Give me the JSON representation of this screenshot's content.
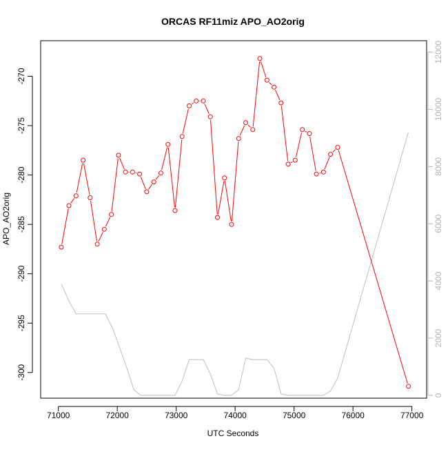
{
  "chart_data": {
    "type": "line",
    "title": "ORCAS RF11miz APO_AO2orig",
    "xlabel": "UTC Seconds",
    "ylabel": "APO_AO2orig",
    "xlim": [
      70700,
      77250
    ],
    "ylim": [
      -302.6,
      -266.4
    ],
    "y2lim": [
      -100,
      12400
    ],
    "x_ticks": [
      71000,
      72000,
      73000,
      74000,
      75000,
      76000,
      77000
    ],
    "y_ticks": [
      -300,
      -295,
      -290,
      -285,
      -280,
      -275,
      -270
    ],
    "y2_ticks": [
      0,
      2000,
      4000,
      6000,
      8000,
      10000,
      12000
    ],
    "grid": false,
    "colors": {
      "primary": "#ff0000",
      "secondary": "#c8c8c8",
      "axis": "#000000",
      "secondary_axis": "#b4b4b4"
    },
    "series": [
      {
        "axis": "left",
        "style": "line+markers",
        "points": [
          [
            71050,
            -287.3
          ],
          [
            71180,
            -283.1
          ],
          [
            71300,
            -282.1
          ],
          [
            71420,
            -278.5
          ],
          [
            71540,
            -282.3
          ],
          [
            71660,
            -287.0
          ],
          [
            71780,
            -285.5
          ],
          [
            71900,
            -284.0
          ],
          [
            72020,
            -278.0
          ],
          [
            72140,
            -279.7
          ],
          [
            72260,
            -279.7
          ],
          [
            72380,
            -279.9
          ],
          [
            72500,
            -281.7
          ],
          [
            72620,
            -280.7
          ],
          [
            72740,
            -279.8
          ],
          [
            72860,
            -276.9
          ],
          [
            72980,
            -283.6
          ],
          [
            73100,
            -276.1
          ],
          [
            73220,
            -273.0
          ],
          [
            73340,
            -272.5
          ],
          [
            73460,
            -272.5
          ],
          [
            73580,
            -274.1
          ],
          [
            73700,
            -284.3
          ],
          [
            73820,
            -280.3
          ],
          [
            73940,
            -285.0
          ],
          [
            74060,
            -276.3
          ],
          [
            74180,
            -274.7
          ],
          [
            74300,
            -275.4
          ],
          [
            74420,
            -268.2
          ],
          [
            74540,
            -270.4
          ],
          [
            74660,
            -271.1
          ],
          [
            74780,
            -272.7
          ],
          [
            74900,
            -278.9
          ],
          [
            75020,
            -278.5
          ],
          [
            75140,
            -275.4
          ],
          [
            75260,
            -275.8
          ],
          [
            75380,
            -279.9
          ],
          [
            75500,
            -279.7
          ],
          [
            75620,
            -277.9
          ],
          [
            75740,
            -277.2
          ],
          [
            76940,
            -301.4
          ]
        ]
      },
      {
        "axis": "right",
        "style": "line",
        "points": [
          [
            71050,
            3900
          ],
          [
            71180,
            3300
          ],
          [
            71300,
            2850
          ],
          [
            71420,
            2850
          ],
          [
            71540,
            2850
          ],
          [
            71660,
            2850
          ],
          [
            71800,
            2850
          ],
          [
            71930,
            2300
          ],
          [
            72060,
            1550
          ],
          [
            72180,
            850
          ],
          [
            72280,
            200
          ],
          [
            72400,
            0
          ],
          [
            72600,
            0
          ],
          [
            72800,
            0
          ],
          [
            72980,
            0
          ],
          [
            73100,
            500
          ],
          [
            73220,
            1250
          ],
          [
            73340,
            1250
          ],
          [
            73460,
            1250
          ],
          [
            73580,
            750
          ],
          [
            73700,
            50
          ],
          [
            73820,
            0
          ],
          [
            73940,
            0
          ],
          [
            74060,
            200
          ],
          [
            74180,
            1300
          ],
          [
            74300,
            1250
          ],
          [
            74420,
            1250
          ],
          [
            74540,
            1250
          ],
          [
            74660,
            950
          ],
          [
            74780,
            50
          ],
          [
            74900,
            0
          ],
          [
            75020,
            0
          ],
          [
            75140,
            0
          ],
          [
            75260,
            0
          ],
          [
            75380,
            0
          ],
          [
            75500,
            0
          ],
          [
            75620,
            150
          ],
          [
            75740,
            600
          ],
          [
            76940,
            9200
          ]
        ]
      }
    ]
  }
}
